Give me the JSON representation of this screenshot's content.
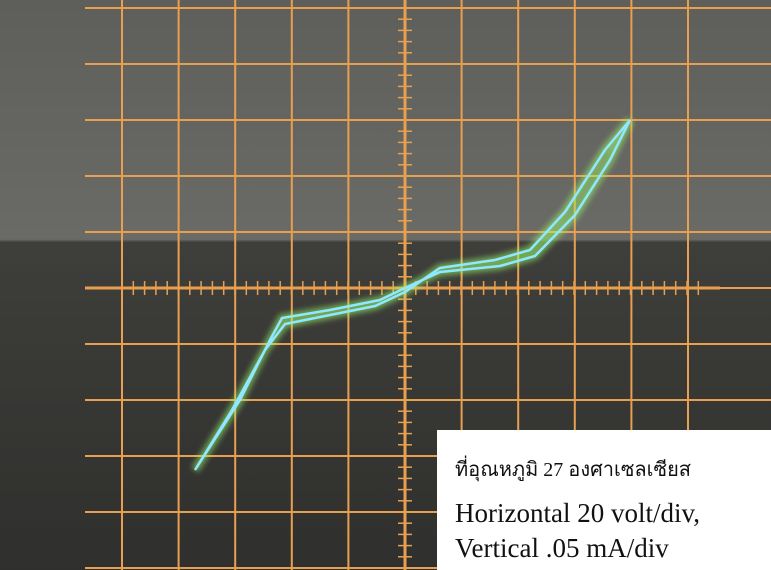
{
  "caption": {
    "lines": [
      "ที่อุณหภูมิ 27 องศาเซลเซียส",
      "Horizontal 20 volt/div,",
      "Vertical .05 mA/div"
    ]
  }
}
